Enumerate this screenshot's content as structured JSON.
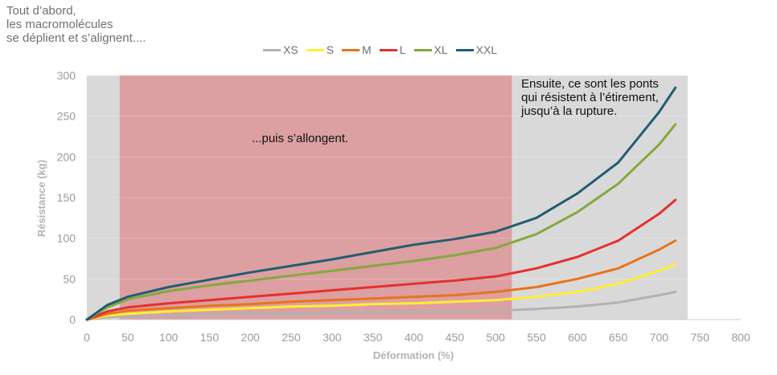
{
  "annotations": {
    "top_left": [
      "Tout d’abord,",
      "les macromolécules",
      "se déplient et s’alignent...."
    ],
    "middle": "...puis s’allongent.",
    "right": [
      "Ensuite, ce sont les ponts",
      "qui résistent à l’étirement,",
      "jusqu’à la rupture."
    ]
  },
  "chart_data": {
    "type": "line",
    "title": "",
    "xlabel": "Déformation (%)",
    "ylabel": "Résistance (kg)",
    "xlim": [
      0,
      800
    ],
    "ylim": [
      0,
      300
    ],
    "xticks": [
      0,
      50,
      100,
      150,
      200,
      250,
      300,
      350,
      400,
      450,
      500,
      550,
      600,
      650,
      700,
      750,
      800
    ],
    "yticks": [
      0,
      50,
      100,
      150,
      200,
      250,
      300
    ],
    "legend_position": "top",
    "regions": [
      {
        "x_start": 0,
        "x_end": 40,
        "color": "#d9d9d9"
      },
      {
        "x_start": 40,
        "x_end": 520,
        "color": "#dc9fa2"
      },
      {
        "x_start": 520,
        "x_end": 735,
        "color": "#d9d9d9"
      }
    ],
    "series": [
      {
        "name": "XS",
        "color": "#b2b2b2",
        "x": [
          0,
          25,
          50,
          100,
          150,
          200,
          250,
          300,
          350,
          400,
          450,
          500,
          550,
          600,
          650,
          700,
          720
        ],
        "y": [
          0,
          3,
          4,
          5,
          6,
          7,
          7.5,
          8,
          9,
          9.5,
          10,
          11,
          13,
          16,
          21,
          30,
          34
        ]
      },
      {
        "name": "S",
        "color": "#ffee33",
        "x": [
          0,
          25,
          50,
          100,
          150,
          200,
          250,
          300,
          350,
          400,
          450,
          500,
          550,
          600,
          650,
          700,
          720
        ],
        "y": [
          0,
          5,
          7,
          10,
          12,
          14,
          16,
          17,
          19,
          20,
          22,
          24,
          28,
          34,
          44,
          60,
          68
        ]
      },
      {
        "name": "M",
        "color": "#e8731c",
        "x": [
          0,
          25,
          50,
          100,
          150,
          200,
          250,
          300,
          350,
          400,
          450,
          500,
          550,
          600,
          650,
          700,
          720
        ],
        "y": [
          0,
          7,
          11,
          14,
          17,
          19,
          22,
          24,
          26,
          28,
          30,
          34,
          40,
          50,
          63,
          86,
          97
        ]
      },
      {
        "name": "L",
        "color": "#e53030",
        "x": [
          0,
          25,
          50,
          100,
          150,
          200,
          250,
          300,
          350,
          400,
          450,
          500,
          550,
          600,
          650,
          700,
          720
        ],
        "y": [
          0,
          10,
          15,
          20,
          24,
          28,
          32,
          36,
          40,
          44,
          48,
          53,
          63,
          77,
          97,
          130,
          147
        ]
      },
      {
        "name": "XL",
        "color": "#84a83e",
        "x": [
          0,
          25,
          50,
          100,
          150,
          200,
          250,
          300,
          350,
          400,
          450,
          500,
          550,
          600,
          650,
          700,
          720
        ],
        "y": [
          0,
          15,
          25,
          35,
          42,
          48,
          54,
          60,
          66,
          72,
          79,
          88,
          105,
          132,
          167,
          215,
          240
        ]
      },
      {
        "name": "XXL",
        "color": "#225d70",
        "x": [
          0,
          25,
          50,
          100,
          150,
          200,
          250,
          300,
          350,
          400,
          450,
          500,
          550,
          600,
          650,
          700,
          720
        ],
        "y": [
          0,
          18,
          28,
          40,
          49,
          58,
          66,
          74,
          83,
          92,
          99,
          108,
          125,
          155,
          193,
          255,
          285
        ]
      }
    ]
  }
}
